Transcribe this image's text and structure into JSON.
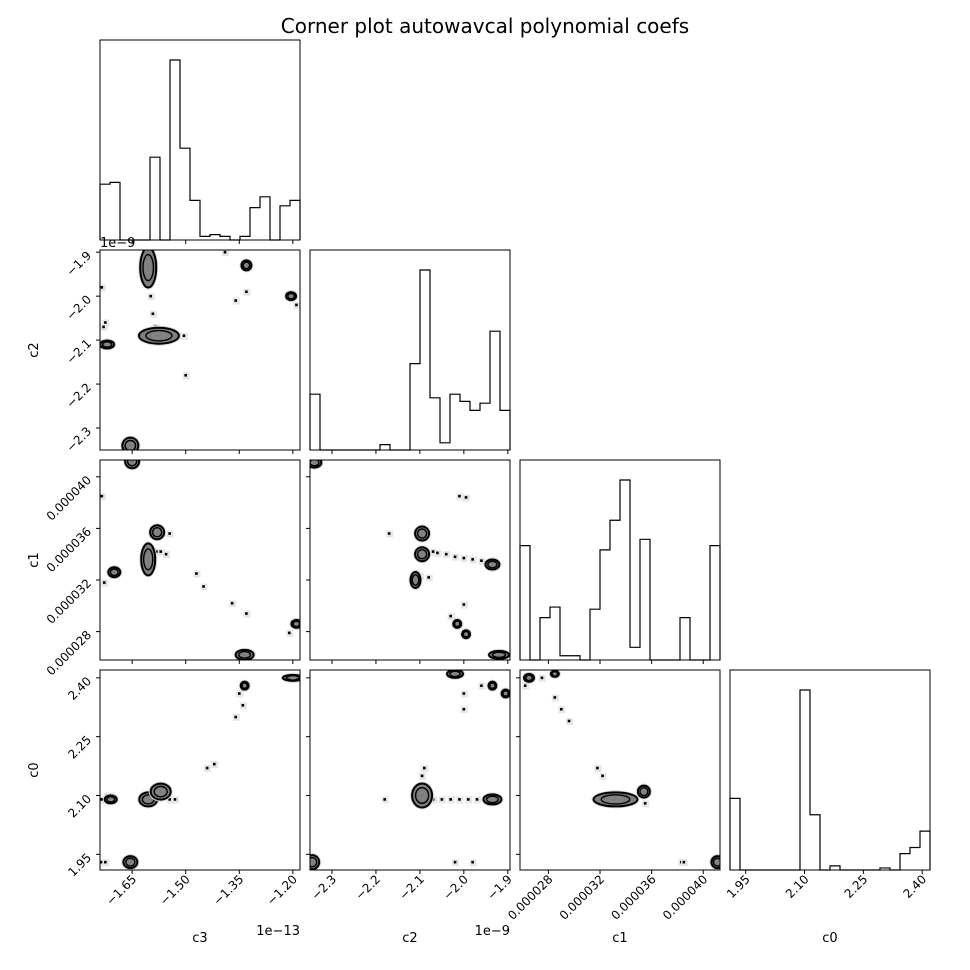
{
  "chart_data": {
    "type": "corner",
    "title": "Corner plot autowavcal polynomial coefs",
    "parameters": [
      {
        "name": "c3",
        "label": "c3",
        "range": [
          -1.74,
          -1.18
        ],
        "ticks": [
          -1.65,
          -1.5,
          -1.35,
          -1.2
        ],
        "tick_labels": [
          "−1.65",
          "−1.50",
          "−1.35",
          "−1.20"
        ],
        "offset_label": "1e−13",
        "y_offset_label": ""
      },
      {
        "name": "c2",
        "label": "c2",
        "range": [
          -2.35,
          -1.895
        ],
        "ticks": [
          -2.3,
          -2.2,
          -2.1,
          -2.0,
          -1.9
        ],
        "tick_labels": [
          "−2.3",
          "−2.2",
          "−2.1",
          "−2.0",
          "−1.9"
        ],
        "offset_label": "1e−9",
        "y_offset_label": "1e−9"
      },
      {
        "name": "c1",
        "label": "c1",
        "range": [
          2.58e-05,
          4.13e-05
        ],
        "ticks": [
          2.8e-05,
          3.2e-05,
          3.6e-05,
          4e-05
        ],
        "tick_labels": [
          "0.000028",
          "0.000032",
          "0.000036",
          "0.000040"
        ],
        "offset_label": "",
        "y_offset_label": ""
      },
      {
        "name": "c0",
        "label": "c0",
        "range": [
          1.91,
          2.42
        ],
        "ticks": [
          1.95,
          2.1,
          2.25,
          2.4
        ],
        "tick_labels": [
          "1.95",
          "2.10",
          "2.25",
          "2.40"
        ],
        "offset_label": "",
        "y_offset_label": ""
      }
    ],
    "histograms": [
      {
        "parameter": "c3",
        "bins": 20,
        "counts": [
          0.31,
          0.32,
          0.0,
          0.0,
          0.0,
          0.46,
          0.0,
          1.0,
          0.51,
          0.22,
          0.02,
          0.03,
          0.02,
          0.0,
          0.02,
          0.18,
          0.24,
          0.0,
          0.19,
          0.22
        ]
      },
      {
        "parameter": "c2",
        "bins": 20,
        "counts": [
          0.31,
          0.0,
          0.0,
          0.0,
          0.0,
          0.0,
          0.0,
          0.03,
          0.0,
          0.0,
          0.48,
          1.0,
          0.29,
          0.04,
          0.31,
          0.27,
          0.22,
          0.26,
          0.66,
          0.22
        ]
      },
      {
        "parameter": "c1",
        "bins": 20,
        "counts": [
          0.54,
          0.0,
          0.2,
          0.25,
          0.02,
          0.02,
          0.0,
          0.24,
          0.52,
          0.66,
          0.85,
          0.06,
          0.57,
          0.0,
          0.0,
          0.0,
          0.2,
          0.0,
          0.0,
          0.54
        ]
      },
      {
        "parameter": "c0",
        "bins": 20,
        "counts": [
          0.35,
          0.0,
          0.0,
          0.0,
          0.0,
          0.0,
          0.0,
          0.88,
          0.27,
          0.0,
          0.02,
          0.0,
          0.0,
          0.0,
          0.0,
          0.01,
          0.0,
          0.08,
          0.11,
          0.19
        ]
      }
    ],
    "pairs": [
      {
        "x": "c3",
        "y": "c2",
        "points": [
          [
            -1.735,
            -2.11
          ],
          [
            -1.72,
            -2.11
          ],
          [
            -1.71,
            -2.11
          ],
          [
            -1.725,
            -2.06
          ],
          [
            -1.73,
            -2.07
          ],
          [
            -1.735,
            -1.98
          ],
          [
            -1.61,
            -1.92
          ],
          [
            -1.605,
            -1.96
          ],
          [
            -1.598,
            -2.0
          ],
          [
            -1.592,
            -2.04
          ],
          [
            -1.585,
            -2.07
          ],
          [
            -1.58,
            -2.09
          ],
          [
            -1.57,
            -2.09
          ],
          [
            -1.56,
            -2.09
          ],
          [
            -1.55,
            -2.09
          ],
          [
            -1.52,
            -2.09
          ],
          [
            -1.505,
            -2.09
          ],
          [
            -1.5,
            -2.18
          ],
          [
            -1.39,
            -1.9
          ],
          [
            -1.33,
            -1.93
          ],
          [
            -1.36,
            -2.01
          ],
          [
            -1.33,
            -1.99
          ],
          [
            -1.21,
            -2.0
          ],
          [
            -1.19,
            -2.02
          ],
          [
            -1.66,
            -2.34
          ],
          [
            -1.645,
            -2.34
          ]
        ],
        "blobs": [
          [
            -1.605,
            -1.935,
            8,
            20
          ],
          [
            -1.575,
            -2.09,
            20,
            8
          ],
          [
            -1.655,
            -2.34,
            8,
            8
          ],
          [
            -1.33,
            -1.93,
            5,
            5
          ],
          [
            -1.72,
            -2.11,
            7,
            4
          ],
          [
            -1.205,
            -2.0,
            5,
            4
          ]
        ]
      },
      {
        "x": "c3",
        "y": "c1",
        "points": [
          [
            -1.735,
            3.85e-05
          ],
          [
            -1.7,
            3.26e-05
          ],
          [
            -1.728,
            3.18e-05
          ],
          [
            -1.6,
            3.4e-05
          ],
          [
            -1.59,
            3.41e-05
          ],
          [
            -1.58,
            3.42e-05
          ],
          [
            -1.57,
            3.42e-05
          ],
          [
            -1.555,
            3.4e-05
          ],
          [
            -1.545,
            3.56e-05
          ],
          [
            -1.47,
            3.25e-05
          ],
          [
            -1.45,
            3.15e-05
          ],
          [
            -1.37,
            3.02e-05
          ],
          [
            -1.33,
            2.94e-05
          ],
          [
            -1.21,
            2.79e-05
          ],
          [
            -1.19,
            2.86e-05
          ],
          [
            -1.35,
            2.62e-05
          ]
        ],
        "blobs": [
          [
            -1.65,
            4.12e-05,
            7,
            7
          ],
          [
            -1.605,
            3.36e-05,
            7,
            16
          ],
          [
            -1.58,
            3.57e-05,
            7,
            7
          ],
          [
            -1.7,
            3.26e-05,
            6,
            5
          ],
          [
            -1.335,
            2.62e-05,
            9,
            5
          ],
          [
            -1.19,
            2.86e-05,
            5,
            4
          ]
        ]
      },
      {
        "x": "c3",
        "y": "c0",
        "points": [
          [
            -1.735,
            2.09
          ],
          [
            -1.72,
            2.1
          ],
          [
            -1.71,
            2.1
          ],
          [
            -1.735,
            1.93
          ],
          [
            -1.725,
            1.93
          ],
          [
            -1.545,
            2.09
          ],
          [
            -1.53,
            2.09
          ],
          [
            -1.44,
            2.17
          ],
          [
            -1.42,
            2.18
          ],
          [
            -1.36,
            2.3
          ],
          [
            -1.35,
            2.36
          ],
          [
            -1.33,
            2.38
          ],
          [
            -1.34,
            2.33
          ],
          [
            -1.21,
            2.4
          ],
          [
            -1.19,
            2.4
          ]
        ],
        "blobs": [
          [
            -1.605,
            2.09,
            9,
            7
          ],
          [
            -1.57,
            2.11,
            10,
            8
          ],
          [
            -1.655,
            1.93,
            7,
            6
          ],
          [
            -1.71,
            2.09,
            6,
            4
          ],
          [
            -1.335,
            2.38,
            4,
            4
          ],
          [
            -1.2,
            2.4,
            10,
            3
          ]
        ]
      },
      {
        "x": "c2",
        "y": "c1",
        "points": [
          [
            -2.17,
            3.56e-05
          ],
          [
            -2.07,
            3.42e-05
          ],
          [
            -2.06,
            3.41e-05
          ],
          [
            -2.04,
            3.4e-05
          ],
          [
            -2.02,
            3.38e-05
          ],
          [
            -2.0,
            3.37e-05
          ],
          [
            -1.98,
            3.36e-05
          ],
          [
            -1.96,
            3.35e-05
          ],
          [
            -2.01,
            3.85e-05
          ],
          [
            -1.995,
            3.84e-05
          ],
          [
            -2.0,
            3.01e-05
          ],
          [
            -2.03,
            2.92e-05
          ],
          [
            -2.1,
            3.23e-05
          ],
          [
            -2.08,
            3.22e-05
          ]
        ],
        "blobs": [
          [
            -2.34,
            4.11e-05,
            7,
            5
          ],
          [
            -2.095,
            3.56e-05,
            7,
            7
          ],
          [
            -2.095,
            3.4e-05,
            7,
            7
          ],
          [
            -1.935,
            3.32e-05,
            7,
            5
          ],
          [
            -2.11,
            3.2e-05,
            5,
            8
          ],
          [
            -2.015,
            2.86e-05,
            4,
            4
          ],
          [
            -1.995,
            2.78e-05,
            4,
            4
          ],
          [
            -1.92,
            2.62e-05,
            10,
            4
          ]
        ]
      },
      {
        "x": "c2",
        "y": "c0",
        "points": [
          [
            -2.18,
            2.09
          ],
          [
            -2.095,
            2.15
          ],
          [
            -2.09,
            2.17
          ],
          [
            -2.07,
            2.09
          ],
          [
            -2.05,
            2.09
          ],
          [
            -2.03,
            2.09
          ],
          [
            -2.01,
            2.09
          ],
          [
            -1.99,
            2.09
          ],
          [
            -1.97,
            2.09
          ],
          [
            -2.0,
            2.32
          ],
          [
            -2.0,
            2.36
          ],
          [
            -1.96,
            2.38
          ],
          [
            -2.02,
            1.93
          ],
          [
            -1.98,
            1.93
          ]
        ],
        "blobs": [
          [
            -2.345,
            1.93,
            7,
            7
          ],
          [
            -2.095,
            2.1,
            10,
            12
          ],
          [
            -1.935,
            2.09,
            9,
            5
          ],
          [
            -2.02,
            2.41,
            8,
            4
          ],
          [
            -1.935,
            2.38,
            4,
            4
          ],
          [
            -1.905,
            2.36,
            4,
            4
          ]
        ]
      },
      {
        "x": "c1",
        "y": "c0",
        "points": [
          [
            2.62e-05,
            2.38
          ],
          [
            2.75e-05,
            2.4
          ],
          [
            2.85e-05,
            2.35
          ],
          [
            2.9e-05,
            2.32
          ],
          [
            2.96e-05,
            2.29
          ],
          [
            3.18e-05,
            2.17
          ],
          [
            3.22e-05,
            2.15
          ],
          [
            3.55e-05,
            2.08
          ],
          [
            3.83e-05,
            1.93
          ],
          [
            3.85e-05,
            1.93
          ]
        ],
        "blobs": [
          [
            3.32e-05,
            2.09,
            22,
            7
          ],
          [
            3.54e-05,
            2.11,
            6,
            6
          ],
          [
            4.11e-05,
            1.93,
            6,
            6
          ],
          [
            2.65e-05,
            2.4,
            5,
            4
          ],
          [
            2.85e-05,
            2.41,
            4,
            3
          ]
        ]
      }
    ],
    "grid": false,
    "legend": "none"
  }
}
